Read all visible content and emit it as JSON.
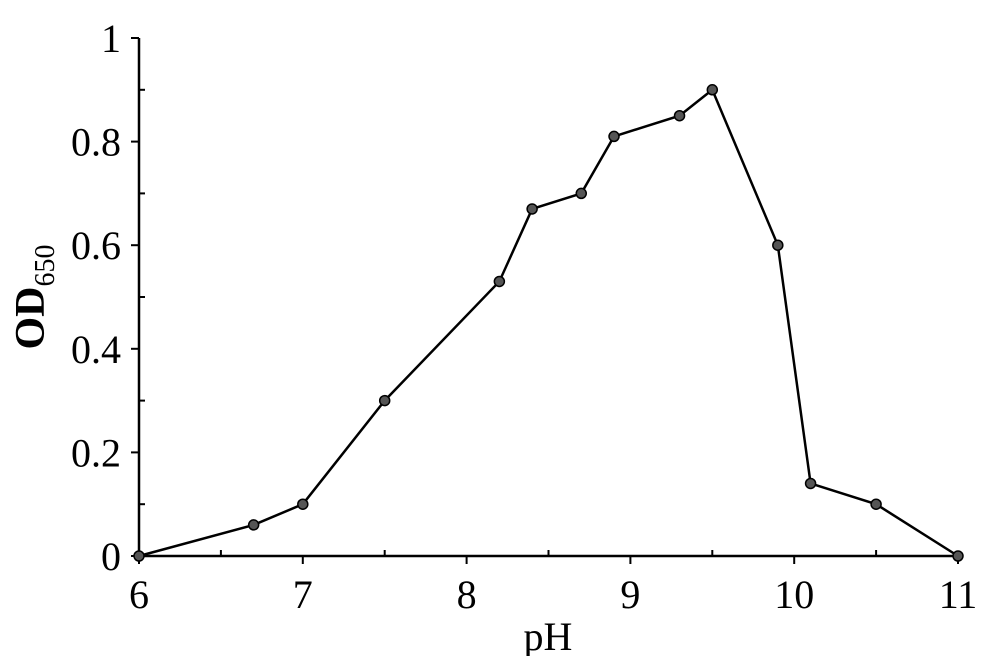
{
  "chart_data": {
    "type": "line",
    "x_label": "pH",
    "y_label": "OD",
    "y_label_subscript": "650",
    "x": [
      6,
      6.7,
      7,
      7.5,
      8.2,
      8.4,
      8.7,
      8.9,
      9.3,
      9.5,
      9.9,
      10.1,
      10.5,
      11
    ],
    "values": [
      0,
      0.06,
      0.1,
      0.3,
      0.53,
      0.67,
      0.7,
      0.81,
      0.85,
      0.9,
      0.6,
      0.14,
      0.1,
      0
    ],
    "color": "#000000",
    "marker_color": "#555555",
    "xlim": [
      6,
      11
    ],
    "ylim": [
      0,
      1
    ],
    "xticks": [
      6,
      7,
      8,
      9,
      10,
      11
    ],
    "yticks": [
      0,
      0.2,
      0.4,
      0.6,
      0.8,
      1
    ],
    "xminorticks": [
      6.5,
      7.5,
      8.5,
      9.5,
      10.5
    ],
    "yminorticks": [
      0.1,
      0.3,
      0.5,
      0.7,
      0.9
    ]
  }
}
